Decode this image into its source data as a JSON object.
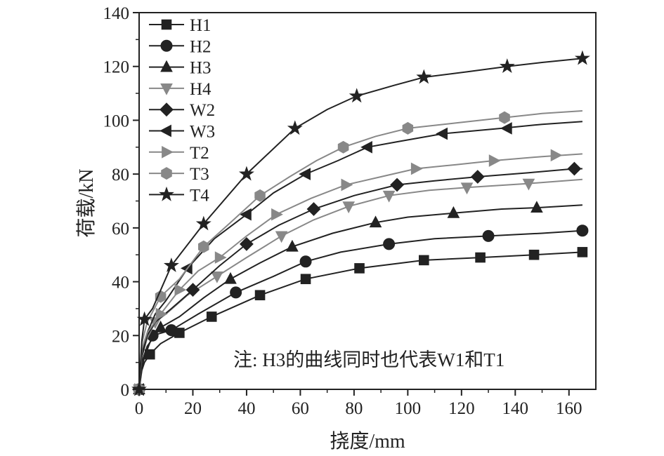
{
  "chart_data": {
    "type": "line",
    "xlabel": "挠度/mm",
    "ylabel": "荷载/kN",
    "xlim": [
      0,
      170
    ],
    "ylim": [
      0,
      140
    ],
    "xticks": [
      0,
      20,
      40,
      60,
      80,
      100,
      120,
      140,
      160
    ],
    "yticks": [
      0,
      20,
      40,
      60,
      80,
      100,
      120,
      140
    ],
    "xtick_labels": [
      "0",
      "20",
      "40",
      "60",
      "80",
      "100",
      "120",
      "140",
      "160"
    ],
    "ytick_labels": [
      "0",
      "20",
      "40",
      "60",
      "80",
      "100",
      "120",
      "140"
    ],
    "legend_position": "top-left",
    "grid": false,
    "annotation": "注: H3的曲线同时也代表W1和T1",
    "series": [
      {
        "name": "H1",
        "color": "#222222",
        "marker": "square",
        "x": [
          0,
          1,
          2,
          4,
          8,
          15,
          27,
          45,
          62,
          82,
          106,
          127,
          147,
          165
        ],
        "y": [
          0,
          7,
          10,
          13,
          17,
          21,
          27,
          35,
          41,
          45,
          48,
          49,
          50,
          51
        ],
        "marker_x": [
          0,
          4,
          15,
          27,
          45,
          62,
          82,
          106,
          127,
          147,
          165
        ],
        "marker_y": [
          0,
          13,
          21,
          27,
          35,
          41,
          45,
          48,
          49,
          50,
          51
        ]
      },
      {
        "name": "H2",
        "color": "#222222",
        "marker": "circle",
        "x": [
          0,
          1,
          2,
          5,
          12,
          22,
          36,
          50,
          62,
          75,
          93,
          110,
          130,
          150,
          165
        ],
        "y": [
          0,
          8,
          12,
          20,
          22,
          28,
          36,
          42,
          47.5,
          51,
          54,
          56,
          57,
          58,
          59
        ],
        "marker_x": [
          0,
          5,
          12,
          36,
          62,
          93,
          130,
          165
        ],
        "marker_y": [
          0,
          20,
          22,
          36,
          47.5,
          54,
          57,
          59
        ]
      },
      {
        "name": "H3",
        "color": "#222222",
        "marker": "triangle-up",
        "x": [
          0,
          1,
          3,
          8,
          15,
          24,
          34,
          45,
          57,
          72,
          88,
          100,
          117,
          135,
          148,
          165
        ],
        "y": [
          0,
          10,
          16,
          23,
          27,
          34,
          41,
          47,
          53,
          58,
          62,
          64,
          65.5,
          67,
          67.5,
          68.5
        ],
        "marker_x": [
          0,
          8,
          34,
          57,
          88,
          117,
          148
        ],
        "marker_y": [
          0,
          23,
          41,
          53,
          62,
          65.5,
          67.5
        ]
      },
      {
        "name": "H4",
        "color": "#888888",
        "marker": "triangle-down",
        "x": [
          0,
          1,
          3,
          6,
          10,
          18,
          29,
          40,
          53,
          65,
          78,
          93,
          108,
          122,
          145,
          165
        ],
        "y": [
          0,
          12,
          19,
          25,
          28,
          35,
          42,
          49,
          57,
          63,
          68,
          72,
          74,
          75,
          76.5,
          78
        ],
        "marker_x": [
          0,
          6,
          29,
          53,
          78,
          93,
          122,
          145
        ],
        "marker_y": [
          0,
          25,
          42,
          57,
          68,
          72,
          75,
          76.5
        ]
      },
      {
        "name": "W2",
        "color": "#222222",
        "marker": "diamond",
        "x": [
          0,
          1,
          3,
          6,
          12,
          20,
          30,
          40,
          52,
          65,
          80,
          96,
          110,
          126,
          145,
          162,
          165
        ],
        "y": [
          0,
          12,
          20,
          25,
          30,
          37,
          46,
          54,
          61,
          67,
          72,
          76,
          77.5,
          79,
          80.5,
          82,
          82
        ],
        "marker_x": [
          0,
          20,
          40,
          65,
          96,
          126,
          162
        ],
        "marker_y": [
          0,
          37,
          54,
          67,
          76,
          79,
          82
        ]
      },
      {
        "name": "W3",
        "color": "#222222",
        "marker": "triangle-left",
        "x": [
          0,
          1,
          3,
          6,
          10,
          18,
          28,
          40,
          50,
          62,
          74,
          85,
          96,
          113,
          135,
          150,
          165
        ],
        "y": [
          0,
          14,
          21,
          28,
          33,
          45,
          56,
          65,
          73,
          80,
          85,
          90,
          92,
          95,
          97,
          98.5,
          99.5
        ],
        "marker_x": [
          0,
          18,
          40,
          62,
          85,
          113,
          137
        ],
        "marker_y": [
          0,
          45,
          65,
          80,
          90,
          95,
          97
        ]
      },
      {
        "name": "T2",
        "color": "#888888",
        "marker": "triangle-right",
        "x": [
          0,
          1,
          3,
          8,
          15,
          22,
          30,
          40,
          51,
          64,
          77,
          90,
          103,
          118,
          132,
          150,
          165
        ],
        "y": [
          0,
          15,
          21,
          28,
          37,
          44,
          49,
          57,
          65,
          71,
          76,
          79,
          82,
          83.5,
          85,
          86.5,
          87.5
        ],
        "marker_x": [
          0,
          8,
          15,
          30,
          51,
          77,
          103,
          132,
          155
        ],
        "marker_y": [
          0,
          28,
          37,
          49,
          65,
          76,
          82,
          85,
          87
        ]
      },
      {
        "name": "T3",
        "color": "#888888",
        "marker": "hexagon",
        "x": [
          0,
          1,
          3,
          8,
          15,
          24,
          34,
          45,
          56,
          66,
          76,
          88,
          100,
          118,
          136,
          150,
          165
        ],
        "y": [
          0,
          17,
          25,
          34.5,
          41,
          53,
          62,
          72,
          79,
          85,
          90,
          94,
          97,
          99,
          101,
          102.5,
          103.5
        ],
        "marker_x": [
          0,
          8,
          24,
          45,
          76,
          100,
          136
        ],
        "marker_y": [
          0,
          34.5,
          53,
          72,
          90,
          97,
          101
        ]
      },
      {
        "name": "T4",
        "color": "#222222",
        "marker": "star",
        "x": [
          0,
          1,
          2,
          5,
          12,
          24,
          40,
          58,
          70,
          81,
          95,
          106,
          122,
          137,
          150,
          165
        ],
        "y": [
          0,
          18,
          26,
          30,
          46,
          61.5,
          80,
          97,
          104,
          109,
          113,
          116,
          118,
          120,
          121.5,
          123
        ],
        "marker_x": [
          0,
          2,
          12,
          24,
          40,
          58,
          81,
          106,
          137,
          165
        ],
        "marker_y": [
          0,
          26,
          46,
          61.5,
          80,
          97,
          109,
          116,
          120,
          123
        ]
      }
    ]
  }
}
